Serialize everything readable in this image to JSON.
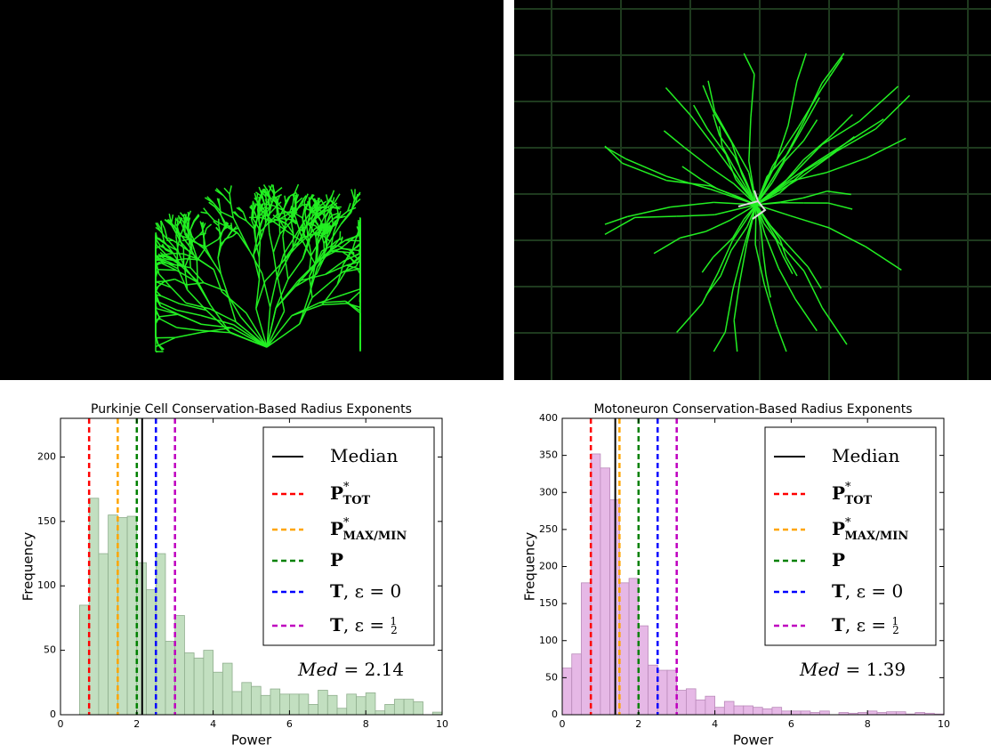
{
  "chart_data": [
    {
      "type": "histogram",
      "title": "Purkinje Cell Conservation-Based Radius Exponents",
      "xlabel": "Power",
      "ylabel": "Frequency",
      "bins": [
        0.5,
        0.75,
        1.0,
        1.25,
        1.5,
        1.75,
        2.0,
        2.25,
        2.5,
        2.75,
        3.0,
        3.25,
        3.5,
        3.75,
        4.0,
        4.25,
        4.5,
        4.75,
        5.0,
        5.25,
        5.5,
        5.75,
        6.0,
        6.25,
        6.5,
        6.75,
        7.0,
        7.25,
        7.5,
        7.75,
        8.0,
        8.25,
        8.5,
        8.75,
        9.0,
        9.25,
        9.5,
        9.75,
        10.0
      ],
      "values": [
        85,
        168,
        125,
        155,
        153,
        154,
        118,
        97,
        125,
        57,
        77,
        48,
        44,
        50,
        33,
        40,
        18,
        25,
        22,
        15,
        20,
        16,
        16,
        16,
        8,
        19,
        15,
        5,
        16,
        14,
        17,
        3,
        8,
        12,
        12,
        10,
        0,
        2
      ],
      "color": "#c2dfc0",
      "edgecolor": "#8fae8d",
      "xlim": [
        0,
        10
      ],
      "ylim": [
        0,
        230
      ],
      "xticks": [
        0,
        2,
        4,
        6,
        8,
        10
      ],
      "yticks": [
        0,
        50,
        100,
        150,
        200
      ],
      "vlines": [
        {
          "value": 2.14,
          "color": "#000000",
          "dash": false,
          "label": [
            {
              "text": "Median",
              "style": "sans"
            }
          ]
        },
        {
          "value": 0.75,
          "color": "#ff0000",
          "dash": true,
          "label": [
            {
              "text": "P",
              "style": "bold"
            },
            {
              "text": "*",
              "style": "sup"
            },
            {
              "text": "TOT",
              "style": "bold-sub"
            }
          ]
        },
        {
          "value": 1.5,
          "color": "#ffa500",
          "dash": true,
          "label": [
            {
              "text": "P",
              "style": "bold"
            },
            {
              "text": "*",
              "style": "sup"
            },
            {
              "text": "MAX/MIN",
              "style": "bold-sub"
            }
          ]
        },
        {
          "value": 2.0,
          "color": "#008000",
          "dash": true,
          "label": [
            {
              "text": "P",
              "style": "bold"
            }
          ]
        },
        {
          "value": 2.5,
          "color": "#0000ff",
          "dash": true,
          "label": [
            {
              "text": "T",
              "style": "bold"
            },
            {
              "text": ", ε = 0",
              "style": "normal"
            }
          ]
        },
        {
          "value": 3.0,
          "color": "#bf00bf",
          "dash": true,
          "label": [
            {
              "text": "T",
              "style": "bold"
            },
            {
              "text": ", ε = ",
              "style": "normal"
            },
            {
              "text": "1",
              "style": "frac-num"
            },
            {
              "text": "2",
              "style": "frac-den"
            }
          ]
        }
      ],
      "annotation": [
        {
          "text": "Med",
          "style": "italic"
        },
        {
          "text": " = 2.14",
          "style": "normal"
        }
      ]
    },
    {
      "type": "histogram",
      "title": "Motoneuron Conservation-Based Radius Exponents",
      "xlabel": "Power",
      "ylabel": "Frequency",
      "bins": [
        0,
        0.25,
        0.5,
        0.75,
        1.0,
        1.25,
        1.5,
        1.75,
        2.0,
        2.25,
        2.5,
        2.75,
        3.0,
        3.25,
        3.5,
        3.75,
        4.0,
        4.25,
        4.5,
        4.75,
        5.0,
        5.25,
        5.5,
        5.75,
        6.0,
        6.25,
        6.5,
        6.75,
        7.0,
        7.25,
        7.5,
        7.75,
        8.0,
        8.25,
        8.5,
        8.75,
        9.0,
        9.25,
        9.5,
        9.75,
        10.0
      ],
      "values": [
        63,
        82,
        178,
        352,
        333,
        290,
        178,
        184,
        120,
        67,
        60,
        60,
        33,
        35,
        20,
        25,
        10,
        18,
        12,
        12,
        10,
        8,
        10,
        5,
        5,
        5,
        3,
        5,
        0,
        3,
        2,
        3,
        5,
        3,
        4,
        4,
        1,
        3,
        2,
        1
      ],
      "color": "#e6b8e6",
      "edgecolor": "#b98ab9",
      "xlim": [
        0,
        10
      ],
      "ylim": [
        0,
        400
      ],
      "xticks": [
        0,
        2,
        4,
        6,
        8,
        10
      ],
      "yticks": [
        0,
        50,
        100,
        150,
        200,
        250,
        300,
        350,
        400
      ],
      "vlines": [
        {
          "value": 1.39,
          "color": "#000000",
          "dash": false,
          "label": [
            {
              "text": "Median",
              "style": "sans"
            }
          ]
        },
        {
          "value": 0.75,
          "color": "#ff0000",
          "dash": true,
          "label": [
            {
              "text": "P",
              "style": "bold"
            },
            {
              "text": "*",
              "style": "sup"
            },
            {
              "text": "TOT",
              "style": "bold-sub"
            }
          ]
        },
        {
          "value": 1.5,
          "color": "#ffa500",
          "dash": true,
          "label": [
            {
              "text": "P",
              "style": "bold"
            },
            {
              "text": "*",
              "style": "sup"
            },
            {
              "text": "MAX/MIN",
              "style": "bold-sub"
            }
          ]
        },
        {
          "value": 2.0,
          "color": "#008000",
          "dash": true,
          "label": [
            {
              "text": "P",
              "style": "bold"
            }
          ]
        },
        {
          "value": 2.5,
          "color": "#0000ff",
          "dash": true,
          "label": [
            {
              "text": "T",
              "style": "bold"
            },
            {
              "text": ", ε = 0",
              "style": "normal"
            }
          ]
        },
        {
          "value": 3.0,
          "color": "#bf00bf",
          "dash": true,
          "label": [
            {
              "text": "T",
              "style": "bold"
            },
            {
              "text": ", ε = ",
              "style": "normal"
            },
            {
              "text": "1",
              "style": "frac-num"
            },
            {
              "text": "2",
              "style": "frac-den"
            }
          ]
        }
      ],
      "annotation": [
        {
          "text": "Med",
          "style": "italic"
        },
        {
          "text": " = 1.39",
          "style": "normal"
        }
      ]
    }
  ]
}
